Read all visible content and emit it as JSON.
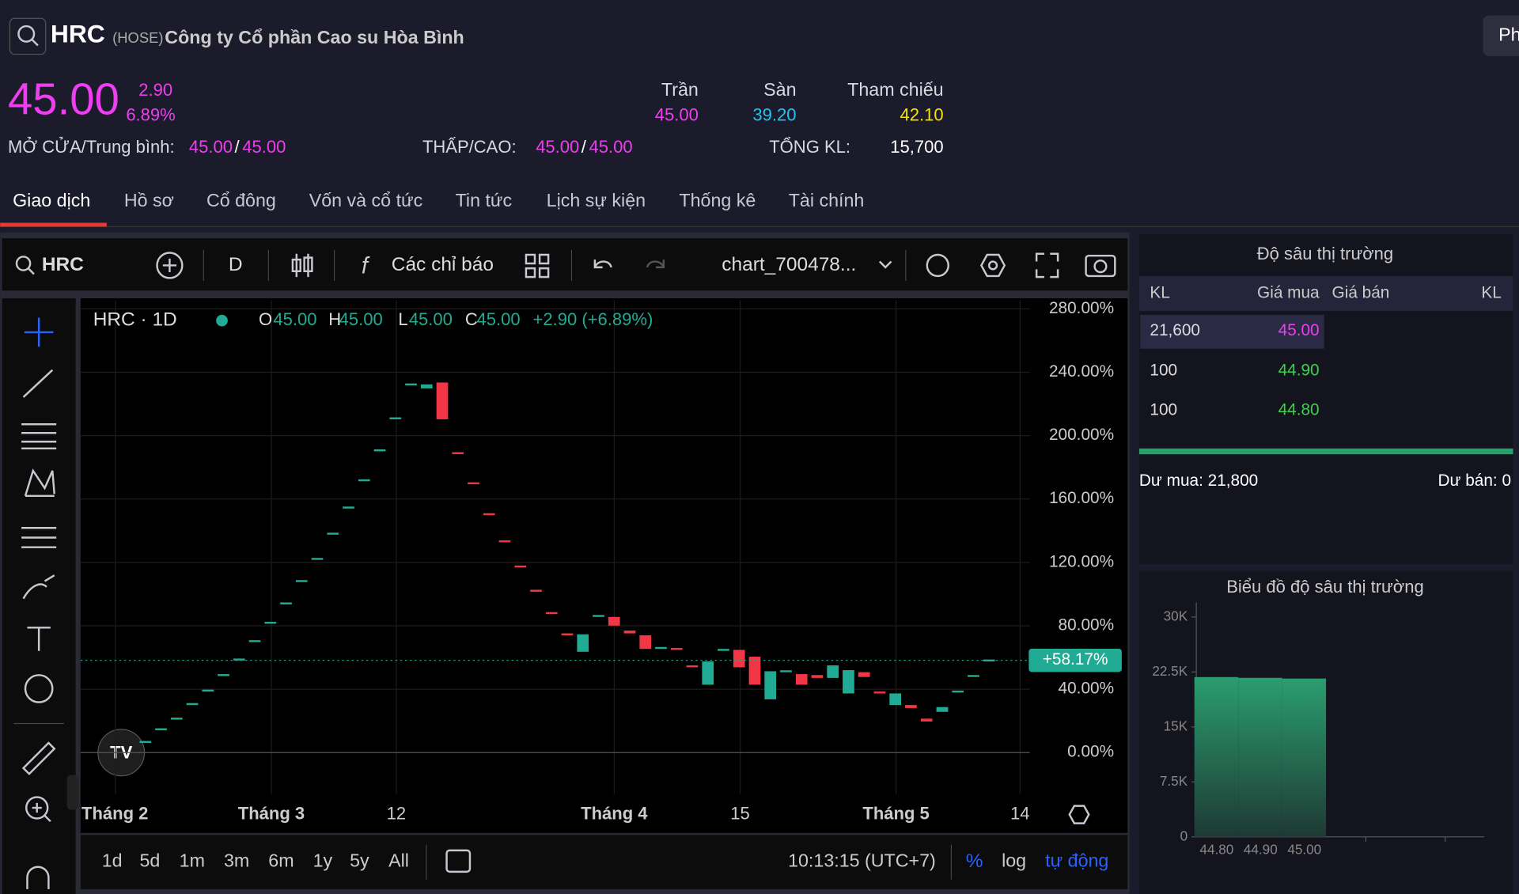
{
  "header": {
    "symbol": "HRC",
    "exchange": "(HOSE)",
    "company": "Công ty Cổ phần Cao su Hòa Bình",
    "button": "Ph"
  },
  "quote": {
    "price": "45.00",
    "change": "2.90",
    "change_pct": "6.89%",
    "ceiling_label": "Trần",
    "ceiling": "45.00",
    "floor_label": "Sàn",
    "floor": "39.20",
    "ref_label": "Tham chiếu",
    "ref": "42.10",
    "open_avg_label": "MỞ CỬA/Trung bình:",
    "open": "45.00",
    "separator": "/",
    "avg": "45.00",
    "low_high_label": "THẤP/CAO:",
    "low": "45.00",
    "high": "45.00",
    "volume_label": "TỔNG KL:",
    "volume": "15,700"
  },
  "tabs": [
    "Giao dịch",
    "Hồ sơ",
    "Cổ đông",
    "Vốn và cổ tức",
    "Tin tức",
    "Lịch sự kiện",
    "Thống kê",
    "Tài chính"
  ],
  "toolbar": {
    "symbol": "HRC",
    "interval": "D",
    "indicators": "Các chỉ báo",
    "layout": "chart_700478..."
  },
  "bottom_bar": {
    "ranges": [
      "1d",
      "5d",
      "1m",
      "3m",
      "6m",
      "1y",
      "5y",
      "All"
    ],
    "time": "10:13:15 (UTC+7)",
    "percent": "%",
    "log": "log",
    "auto": "tự động"
  },
  "chart_data": [
    {
      "type": "candlestick",
      "title": "HRC · 1D",
      "legend": {
        "o_label": "O",
        "o": "45.00",
        "h_label": "H",
        "h": "45.00",
        "l_label": "L",
        "l": "45.00",
        "c_label": "C",
        "c": "45.00",
        "change": "+2.90 (+6.89%)"
      },
      "x_labels": [
        "Tháng 2",
        "Tháng 3",
        "12",
        "Tháng 4",
        "15",
        "Tháng 5",
        "14"
      ],
      "open": [
        6.7,
        14.7,
        21.4,
        30.6,
        39.1,
        48.9,
        58.7,
        70.3,
        81.9,
        94.1,
        108.2,
        122.2,
        138.1,
        154.6,
        171.8,
        190.7,
        210.9,
        232.3,
        229.8,
        233.5,
        188.9,
        169.9,
        150.4,
        133.3,
        117.4,
        102.1,
        88.0,
        74.6,
        63.6,
        86.2,
        85.6,
        77.0,
        74.0,
        66.0,
        65.4,
        54.4,
        42.8,
        64.8,
        64.8,
        60.5,
        33.6,
        51.3,
        49.5,
        48.9,
        47.1,
        37.3,
        50.7,
        37.9,
        30.0,
        30.0,
        21.4,
        25.7,
        38.5,
        48.3,
        58.1
      ],
      "close": [
        6.7,
        14.7,
        21.4,
        30.6,
        39.1,
        48.9,
        58.7,
        70.3,
        81.9,
        94.1,
        108.2,
        122.2,
        138.1,
        154.6,
        171.8,
        190.7,
        210.9,
        232.3,
        232.3,
        210.3,
        188.9,
        169.9,
        150.4,
        133.3,
        117.4,
        102.1,
        88.0,
        74.6,
        74.6,
        86.2,
        80.1,
        75.2,
        65.4,
        66.0,
        65.4,
        54.4,
        57.5,
        64.8,
        53.8,
        42.8,
        51.3,
        51.3,
        42.8,
        47.1,
        55.0,
        52.0,
        47.7,
        37.9,
        37.3,
        28.1,
        19.6,
        28.7,
        38.5,
        48.3,
        58.1
      ],
      "up_color": "#22ab94",
      "down_color": "#f23645",
      "ylim": [
        -26.3,
        285.4
      ],
      "yticks": [
        {
          "value": 0,
          "label": "0.00%"
        },
        {
          "value": 40,
          "label": "40.00%"
        },
        {
          "value": 80,
          "label": "80.00%"
        },
        {
          "value": 120,
          "label": "120.00%"
        },
        {
          "value": 160,
          "label": "160.00%"
        },
        {
          "value": 200,
          "label": "200.00%"
        },
        {
          "value": 240,
          "label": "240.00%"
        },
        {
          "value": 280,
          "label": "280.00%"
        }
      ],
      "last": {
        "value": 58.17,
        "label": "+58.17%"
      },
      "grid": true
    },
    {
      "type": "bar",
      "title": "Biểu đồ độ sâu thị trường",
      "categories": [
        "44.80",
        "44.90",
        "45.00"
      ],
      "values": [
        21800,
        21700,
        21600
      ],
      "color": "#2a9d6f",
      "ylim": [
        0,
        30000
      ],
      "yticks": [
        0,
        {
          "value": 7500,
          "label": "7.5K"
        },
        {
          "value": 15000,
          "label": "15K"
        },
        {
          "value": 22500,
          "label": "22.5K"
        },
        {
          "value": 30000,
          "label": "30K"
        }
      ]
    }
  ],
  "order_book": {
    "title": "Độ sâu thị trường",
    "columns": [
      "KL",
      "Giá mua",
      "Giá bán",
      "KL"
    ],
    "rows": [
      [
        "21,600",
        "45.00"
      ],
      [
        "100",
        "44.90"
      ],
      [
        "100",
        "44.80"
      ]
    ],
    "buy_total": "Dư mua: 21,800",
    "sell_total": "Dư bán: 0"
  }
}
